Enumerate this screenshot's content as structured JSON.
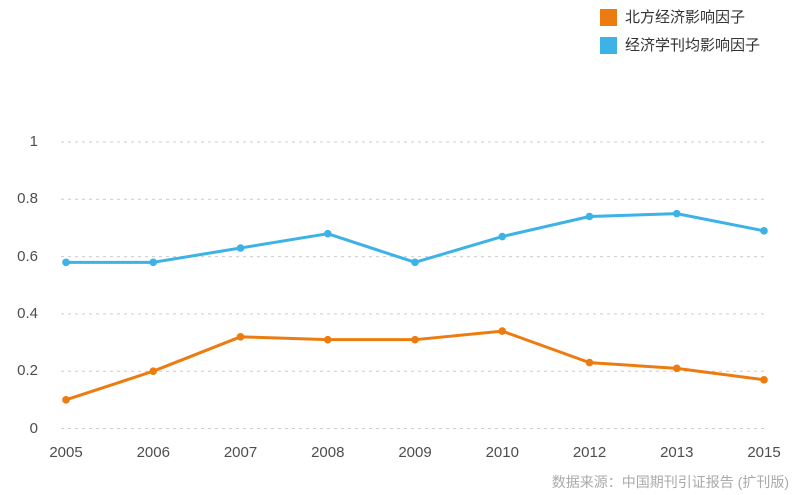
{
  "legend": {
    "items": [
      {
        "label": "北方经济影响因子",
        "color": "#ec7c10"
      },
      {
        "label": "经济学刊均影响因子",
        "color": "#3cb2e6"
      }
    ]
  },
  "source_note": "数据来源：中国期刊引证报告 (扩刊版)",
  "chart_data": {
    "type": "line",
    "title": "",
    "xlabel": "",
    "ylabel": "",
    "categories": [
      "2005",
      "2006",
      "2007",
      "2008",
      "2009",
      "2010",
      "2012",
      "2013",
      "2015"
    ],
    "series": [
      {
        "name": "北方经济影响因子",
        "color": "#ec7c10",
        "values": [
          0.1,
          0.2,
          0.32,
          0.31,
          0.31,
          0.34,
          0.23,
          0.21,
          0.17
        ]
      },
      {
        "name": "经济学刊均影响因子",
        "color": "#3cb2e6",
        "values": [
          0.58,
          0.58,
          0.63,
          0.68,
          0.58,
          0.67,
          0.74,
          0.75,
          0.69
        ]
      }
    ],
    "yticks": [
      0,
      0.2,
      0.4,
      0.6,
      0.8,
      1
    ],
    "ylim": [
      0,
      1
    ],
    "grid": "horizontal-dashed",
    "gridline_color": "#cccccc",
    "tick_label_color": "#4d4d4d",
    "legend_position": "top-right",
    "markers": true
  }
}
